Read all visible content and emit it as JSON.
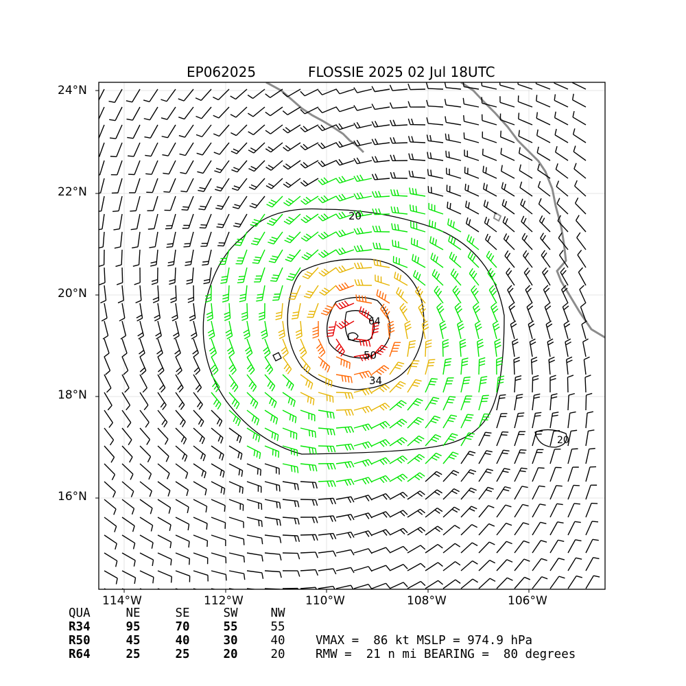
{
  "title": {
    "storm_id": "EP062025",
    "storm_info": "FLOSSIE 2025 02 Jul 18UTC"
  },
  "axes": {
    "lat_ticks": [
      "24°N",
      "22°N",
      "20°N",
      "18°N",
      "16°N"
    ],
    "lon_ticks": [
      "114°W",
      "112°W",
      "110°W",
      "108°W",
      "106°W"
    ]
  },
  "contour_labels": [
    "20",
    "34",
    "50",
    "64",
    "20"
  ],
  "colors": {
    "coast": "#8c8c8c",
    "barb_default": "#000000",
    "barb_34kt": "#00e600",
    "barb_50kt": "#e6b400",
    "barb_64kt": "#ff6600",
    "barb_max": "#e60000"
  },
  "wind_radii": {
    "headers": [
      "QUA",
      "NE",
      "SE",
      "SW",
      "NW"
    ],
    "rows": [
      {
        "label": "R34",
        "values": [
          "95",
          "70",
          "55",
          "55"
        ]
      },
      {
        "label": "R50",
        "values": [
          "45",
          "40",
          "30",
          "40"
        ]
      },
      {
        "label": "R64",
        "values": [
          "25",
          "25",
          "20",
          "20"
        ]
      }
    ]
  },
  "stats": {
    "line1": "VMAX =  86 kt MSLP = 974.9 hPa",
    "line2": "RMW =  21 n mi BEARING =  80 degrees"
  }
}
